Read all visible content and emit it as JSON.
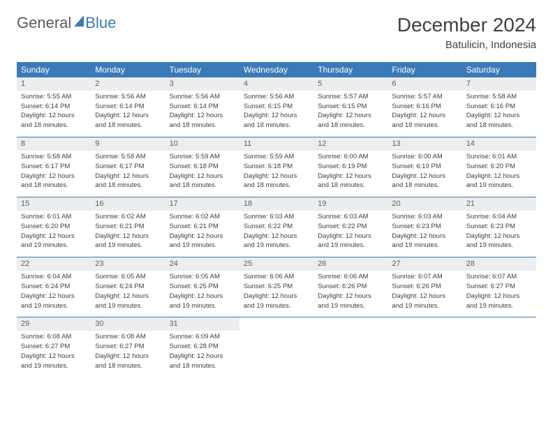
{
  "brand": {
    "part1": "General",
    "part2": "Blue"
  },
  "title": "December 2024",
  "location": "Batulicin, Indonesia",
  "colors": {
    "header_bg": "#3a7ab8",
    "header_text": "#ffffff",
    "daynum_bg": "#ebedef",
    "border": "#3a7ab8",
    "body_text": "#404040"
  },
  "weekdays": [
    "Sunday",
    "Monday",
    "Tuesday",
    "Wednesday",
    "Thursday",
    "Friday",
    "Saturday"
  ],
  "weeks": [
    [
      {
        "day": "1",
        "sunrise": "Sunrise: 5:55 AM",
        "sunset": "Sunset: 6:14 PM",
        "dl1": "Daylight: 12 hours",
        "dl2": "and 18 minutes."
      },
      {
        "day": "2",
        "sunrise": "Sunrise: 5:56 AM",
        "sunset": "Sunset: 6:14 PM",
        "dl1": "Daylight: 12 hours",
        "dl2": "and 18 minutes."
      },
      {
        "day": "3",
        "sunrise": "Sunrise: 5:56 AM",
        "sunset": "Sunset: 6:14 PM",
        "dl1": "Daylight: 12 hours",
        "dl2": "and 18 minutes."
      },
      {
        "day": "4",
        "sunrise": "Sunrise: 5:56 AM",
        "sunset": "Sunset: 6:15 PM",
        "dl1": "Daylight: 12 hours",
        "dl2": "and 18 minutes."
      },
      {
        "day": "5",
        "sunrise": "Sunrise: 5:57 AM",
        "sunset": "Sunset: 6:15 PM",
        "dl1": "Daylight: 12 hours",
        "dl2": "and 18 minutes."
      },
      {
        "day": "6",
        "sunrise": "Sunrise: 5:57 AM",
        "sunset": "Sunset: 6:16 PM",
        "dl1": "Daylight: 12 hours",
        "dl2": "and 18 minutes."
      },
      {
        "day": "7",
        "sunrise": "Sunrise: 5:58 AM",
        "sunset": "Sunset: 6:16 PM",
        "dl1": "Daylight: 12 hours",
        "dl2": "and 18 minutes."
      }
    ],
    [
      {
        "day": "8",
        "sunrise": "Sunrise: 5:58 AM",
        "sunset": "Sunset: 6:17 PM",
        "dl1": "Daylight: 12 hours",
        "dl2": "and 18 minutes."
      },
      {
        "day": "9",
        "sunrise": "Sunrise: 5:58 AM",
        "sunset": "Sunset: 6:17 PM",
        "dl1": "Daylight: 12 hours",
        "dl2": "and 18 minutes."
      },
      {
        "day": "10",
        "sunrise": "Sunrise: 5:59 AM",
        "sunset": "Sunset: 6:18 PM",
        "dl1": "Daylight: 12 hours",
        "dl2": "and 18 minutes."
      },
      {
        "day": "11",
        "sunrise": "Sunrise: 5:59 AM",
        "sunset": "Sunset: 6:18 PM",
        "dl1": "Daylight: 12 hours",
        "dl2": "and 18 minutes."
      },
      {
        "day": "12",
        "sunrise": "Sunrise: 6:00 AM",
        "sunset": "Sunset: 6:19 PM",
        "dl1": "Daylight: 12 hours",
        "dl2": "and 18 minutes."
      },
      {
        "day": "13",
        "sunrise": "Sunrise: 6:00 AM",
        "sunset": "Sunset: 6:19 PM",
        "dl1": "Daylight: 12 hours",
        "dl2": "and 18 minutes."
      },
      {
        "day": "14",
        "sunrise": "Sunrise: 6:01 AM",
        "sunset": "Sunset: 6:20 PM",
        "dl1": "Daylight: 12 hours",
        "dl2": "and 19 minutes."
      }
    ],
    [
      {
        "day": "15",
        "sunrise": "Sunrise: 6:01 AM",
        "sunset": "Sunset: 6:20 PM",
        "dl1": "Daylight: 12 hours",
        "dl2": "and 19 minutes."
      },
      {
        "day": "16",
        "sunrise": "Sunrise: 6:02 AM",
        "sunset": "Sunset: 6:21 PM",
        "dl1": "Daylight: 12 hours",
        "dl2": "and 19 minutes."
      },
      {
        "day": "17",
        "sunrise": "Sunrise: 6:02 AM",
        "sunset": "Sunset: 6:21 PM",
        "dl1": "Daylight: 12 hours",
        "dl2": "and 19 minutes."
      },
      {
        "day": "18",
        "sunrise": "Sunrise: 6:03 AM",
        "sunset": "Sunset: 6:22 PM",
        "dl1": "Daylight: 12 hours",
        "dl2": "and 19 minutes."
      },
      {
        "day": "19",
        "sunrise": "Sunrise: 6:03 AM",
        "sunset": "Sunset: 6:22 PM",
        "dl1": "Daylight: 12 hours",
        "dl2": "and 19 minutes."
      },
      {
        "day": "20",
        "sunrise": "Sunrise: 6:03 AM",
        "sunset": "Sunset: 6:23 PM",
        "dl1": "Daylight: 12 hours",
        "dl2": "and 19 minutes."
      },
      {
        "day": "21",
        "sunrise": "Sunrise: 6:04 AM",
        "sunset": "Sunset: 6:23 PM",
        "dl1": "Daylight: 12 hours",
        "dl2": "and 19 minutes."
      }
    ],
    [
      {
        "day": "22",
        "sunrise": "Sunrise: 6:04 AM",
        "sunset": "Sunset: 6:24 PM",
        "dl1": "Daylight: 12 hours",
        "dl2": "and 19 minutes."
      },
      {
        "day": "23",
        "sunrise": "Sunrise: 6:05 AM",
        "sunset": "Sunset: 6:24 PM",
        "dl1": "Daylight: 12 hours",
        "dl2": "and 19 minutes."
      },
      {
        "day": "24",
        "sunrise": "Sunrise: 6:05 AM",
        "sunset": "Sunset: 6:25 PM",
        "dl1": "Daylight: 12 hours",
        "dl2": "and 19 minutes."
      },
      {
        "day": "25",
        "sunrise": "Sunrise: 6:06 AM",
        "sunset": "Sunset: 6:25 PM",
        "dl1": "Daylight: 12 hours",
        "dl2": "and 19 minutes."
      },
      {
        "day": "26",
        "sunrise": "Sunrise: 6:06 AM",
        "sunset": "Sunset: 6:26 PM",
        "dl1": "Daylight: 12 hours",
        "dl2": "and 19 minutes."
      },
      {
        "day": "27",
        "sunrise": "Sunrise: 6:07 AM",
        "sunset": "Sunset: 6:26 PM",
        "dl1": "Daylight: 12 hours",
        "dl2": "and 19 minutes."
      },
      {
        "day": "28",
        "sunrise": "Sunrise: 6:07 AM",
        "sunset": "Sunset: 6:27 PM",
        "dl1": "Daylight: 12 hours",
        "dl2": "and 19 minutes."
      }
    ],
    [
      {
        "day": "29",
        "sunrise": "Sunrise: 6:08 AM",
        "sunset": "Sunset: 6:27 PM",
        "dl1": "Daylight: 12 hours",
        "dl2": "and 19 minutes."
      },
      {
        "day": "30",
        "sunrise": "Sunrise: 6:08 AM",
        "sunset": "Sunset: 6:27 PM",
        "dl1": "Daylight: 12 hours",
        "dl2": "and 18 minutes."
      },
      {
        "day": "31",
        "sunrise": "Sunrise: 6:09 AM",
        "sunset": "Sunset: 6:28 PM",
        "dl1": "Daylight: 12 hours",
        "dl2": "and 18 minutes."
      },
      null,
      null,
      null,
      null
    ]
  ]
}
